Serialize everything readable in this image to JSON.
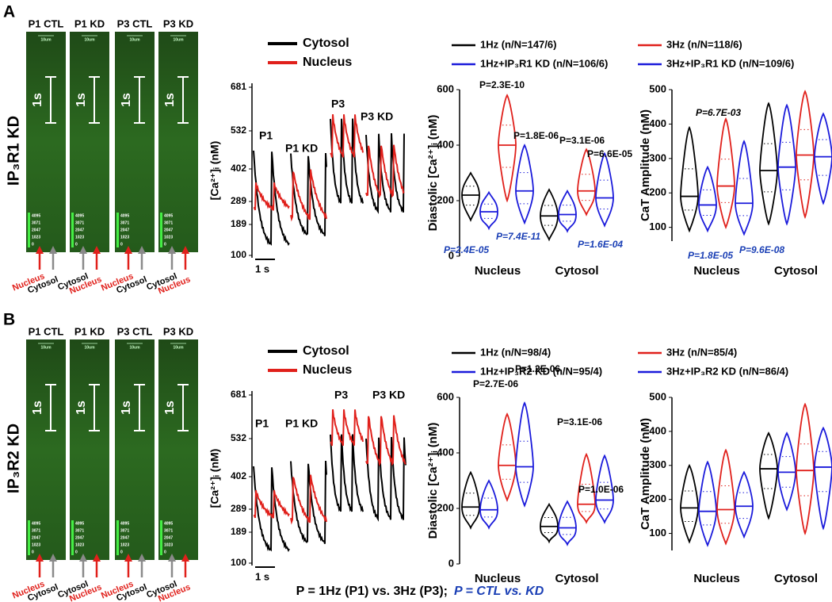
{
  "figure": {
    "panels": [
      {
        "letter": "A",
        "row_label": "IP₃R1 KD",
        "images": [
          {
            "title": "P1 CTL",
            "arrows": [
              {
                "label": "Nucleus",
                "color": "#e0201b",
                "arrow_color": "#e0201b"
              },
              {
                "label": "Cytosol",
                "color": "#000000",
                "arrow_color": "#8a8a8a"
              }
            ]
          },
          {
            "title": "P1 KD",
            "arrows": [
              {
                "label": "Cytosol",
                "color": "#000000",
                "arrow_color": "#8a8a8a"
              },
              {
                "label": "Nucleus",
                "color": "#e0201b",
                "arrow_color": "#e0201b"
              }
            ]
          },
          {
            "title": "P3 CTL",
            "arrows": [
              {
                "label": "Nucleus",
                "color": "#e0201b",
                "arrow_color": "#e0201b"
              },
              {
                "label": "Cytosol",
                "color": "#000000",
                "arrow_color": "#8a8a8a"
              }
            ]
          },
          {
            "title": "P3 KD",
            "arrows": [
              {
                "label": "Cytosol",
                "color": "#000000",
                "arrow_color": "#8a8a8a"
              },
              {
                "label": "Nucleus",
                "color": "#e0201b",
                "arrow_color": "#e0201b"
              }
            ]
          }
        ],
        "image_scale": "10um",
        "time_bar": "1s",
        "intensity_ticks": [
          4095,
          3071,
          2047,
          1023,
          0
        ],
        "trace": {
          "legend": [
            {
              "text": "Cytosol",
              "color": "#000000"
            },
            {
              "text": "Nucleus",
              "color": "#e0201b"
            }
          ],
          "ylabel": "[Ca²⁺]ᵢ (nM)",
          "yticks": [
            681,
            532,
            402,
            289,
            189,
            100
          ],
          "labels": [
            "P1",
            "P1 KD",
            "P3",
            "P3 KD"
          ],
          "scale_bar": "1 s"
        },
        "legend": [
          {
            "text": "1Hz (n/N=147/6)",
            "color": "#000000"
          },
          {
            "text": "3Hz (n/N=118/6)",
            "color": "#e0201b"
          },
          {
            "text": "1Hz+IP₃R1 KD (n/N=106/6)",
            "color": "#1a1adb"
          },
          {
            "text": "3Hz+IP₃R1 KD (n/N=109/6)",
            "color": "#1a1adb"
          }
        ],
        "diastolic": {
          "ylabel": "Diastolic [Ca²⁺]ᵢ (nM)",
          "ylim": [
            0,
            600
          ],
          "yticks": [
            0,
            200,
            400,
            600
          ],
          "groups": [
            "Nucleus",
            "Cytosol"
          ],
          "series": [
            {
              "color": "#000000",
              "median": [
                220,
                145
              ],
              "min": [
                130,
                60
              ],
              "max": [
                300,
                240
              ]
            },
            {
              "color": "#1a1adb",
              "median": [
                160,
                150
              ],
              "min": [
                100,
                90
              ],
              "max": [
                230,
                235
              ]
            },
            {
              "color": "#e0201b",
              "median": [
                400,
                235
              ],
              "min": [
                200,
                150
              ],
              "max": [
                580,
                385
              ]
            },
            {
              "color": "#1a1adb",
              "median": [
                235,
                210
              ],
              "min": [
                120,
                110
              ],
              "max": [
                400,
                370
              ]
            }
          ],
          "pvalues": [
            {
              "text": "P=2.3E-10",
              "color": "#000000",
              "italic": false
            },
            {
              "text": "P=1.8E-06",
              "color": "#000000",
              "italic": false
            },
            {
              "text": "P=7.4E-11",
              "color": "#1a3fb5",
              "italic": true
            },
            {
              "text": "P=2.4E-05",
              "color": "#1a3fb5",
              "italic": true
            },
            {
              "text": "P=3.1E-06",
              "color": "#000000",
              "italic": false
            },
            {
              "text": "P=6.6E-05",
              "color": "#000000",
              "italic": false
            },
            {
              "text": "P=1.6E-04",
              "color": "#1a3fb5",
              "italic": true
            }
          ]
        },
        "amplitude": {
          "ylabel": "CaT Amplitude (nM)",
          "ylim": [
            60,
            500
          ],
          "yticks": [
            100,
            200,
            300,
            400,
            500
          ],
          "groups": [
            "Nucleus",
            "Cytosol"
          ],
          "series": [
            {
              "color": "#000000",
              "median": [
                190,
                265
              ],
              "min": [
                90,
                110
              ],
              "max": [
                390,
                460
              ]
            },
            {
              "color": "#1a1adb",
              "median": [
                165,
                275
              ],
              "min": [
                90,
                110
              ],
              "max": [
                275,
                455
              ]
            },
            {
              "color": "#e0201b",
              "median": [
                220,
                310
              ],
              "min": [
                100,
                130
              ],
              "max": [
                415,
                495
              ]
            },
            {
              "color": "#1a1adb",
              "median": [
                170,
                305
              ],
              "min": [
                80,
                170
              ],
              "max": [
                350,
                430
              ]
            }
          ],
          "pvalues": [
            {
              "text": "P=6.7E-03",
              "color": "#000000",
              "italic": true
            },
            {
              "text": "P=1.8E-05",
              "color": "#1a3fb5",
              "italic": true
            },
            {
              "text": "P=9.6E-08",
              "color": "#1a3fb5",
              "italic": true
            }
          ]
        }
      },
      {
        "letter": "B",
        "row_label": "IP₃R2 KD",
        "images": [
          {
            "title": "P1 CTL",
            "arrows": [
              {
                "label": "Nucleus",
                "color": "#e0201b",
                "arrow_color": "#e0201b"
              },
              {
                "label": "Cytosol",
                "color": "#000000",
                "arrow_color": "#8a8a8a"
              }
            ]
          },
          {
            "title": "P1 KD",
            "arrows": [
              {
                "label": "Cytosol",
                "color": "#000000",
                "arrow_color": "#8a8a8a"
              },
              {
                "label": "Nucleus",
                "color": "#e0201b",
                "arrow_color": "#e0201b"
              }
            ]
          },
          {
            "title": "P3 CTL",
            "arrows": [
              {
                "label": "Nucleus",
                "color": "#e0201b",
                "arrow_color": "#e0201b"
              },
              {
                "label": "Cytosol",
                "color": "#000000",
                "arrow_color": "#8a8a8a"
              }
            ]
          },
          {
            "title": "P3 KD",
            "arrows": [
              {
                "label": "Cytosol",
                "color": "#000000",
                "arrow_color": "#8a8a8a"
              },
              {
                "label": "Nucleus",
                "color": "#e0201b",
                "arrow_color": "#e0201b"
              }
            ]
          }
        ],
        "image_scale": "10um",
        "time_bar": "1s",
        "intensity_ticks": [
          4095,
          3071,
          2047,
          1023,
          0
        ],
        "trace": {
          "legend": [
            {
              "text": "Cytosol",
              "color": "#000000"
            },
            {
              "text": "Nucleus",
              "color": "#e0201b"
            }
          ],
          "ylabel": "[Ca²⁺]ᵢ (nM)",
          "yticks": [
            681,
            532,
            402,
            289,
            189,
            100
          ],
          "labels": [
            "P1",
            "P1 KD",
            "P3",
            "P3 KD"
          ],
          "scale_bar": "1 s"
        },
        "legend": [
          {
            "text": "1Hz (n/N=98/4)",
            "color": "#000000"
          },
          {
            "text": "3Hz (n/N=85/4)",
            "color": "#e0201b"
          },
          {
            "text": "1Hz+IP₃R2 KD (n/N=95/4)",
            "color": "#1a1adb"
          },
          {
            "text": "3Hz+IP₃R2 KD (n/N=86/4)",
            "color": "#1a1adb"
          }
        ],
        "diastolic": {
          "ylabel": "Diastolic [Ca²⁺]ᵢ (nM)",
          "ylim": [
            0,
            600
          ],
          "yticks": [
            0,
            200,
            400,
            600
          ],
          "groups": [
            "Nucleus",
            "Cytosol"
          ],
          "series": [
            {
              "color": "#000000",
              "median": [
                205,
                135
              ],
              "min": [
                130,
                80
              ],
              "max": [
                330,
                215
              ]
            },
            {
              "color": "#1a1adb",
              "median": [
                195,
                130
              ],
              "min": [
                130,
                70
              ],
              "max": [
                300,
                225
              ]
            },
            {
              "color": "#e0201b",
              "median": [
                355,
                215
              ],
              "min": [
                230,
                150
              ],
              "max": [
                540,
                395
              ]
            },
            {
              "color": "#1a1adb",
              "median": [
                350,
                230
              ],
              "min": [
                210,
                150
              ],
              "max": [
                580,
                390
              ]
            }
          ],
          "pvalues": [
            {
              "text": "P=2.7E-06",
              "color": "#000000",
              "italic": false
            },
            {
              "text": "P=1.2E-06",
              "color": "#000000",
              "italic": false
            },
            {
              "text": "P=3.1E-06",
              "color": "#000000",
              "italic": false
            },
            {
              "text": "P=1.0E-06",
              "color": "#000000",
              "italic": false
            }
          ]
        },
        "amplitude": {
          "ylabel": "CaT Amplitude (nM)",
          "ylim": [
            50,
            500
          ],
          "yticks": [
            100,
            200,
            300,
            400,
            500
          ],
          "groups": [
            "Nucleus",
            "Cytosol"
          ],
          "series": [
            {
              "color": "#000000",
              "median": [
                175,
                290
              ],
              "min": [
                75,
                145
              ],
              "max": [
                300,
                395
              ]
            },
            {
              "color": "#1a1adb",
              "median": [
                165,
                280
              ],
              "min": [
                65,
                170
              ],
              "max": [
                310,
                395
              ]
            },
            {
              "color": "#e0201b",
              "median": [
                170,
                285
              ],
              "min": [
                70,
                100
              ],
              "max": [
                345,
                480
              ]
            },
            {
              "color": "#1a1adb",
              "median": [
                180,
                295
              ],
              "min": [
                90,
                115
              ],
              "max": [
                280,
                410
              ]
            }
          ],
          "pvalues": []
        }
      }
    ],
    "caption": [
      {
        "text": "P = 1Hz (P1) vs. 3Hz (P3);",
        "color": "#000000",
        "italic": false
      },
      {
        "text": "P = CTL vs. KD",
        "color": "#1a3fb5",
        "italic": true
      }
    ]
  }
}
